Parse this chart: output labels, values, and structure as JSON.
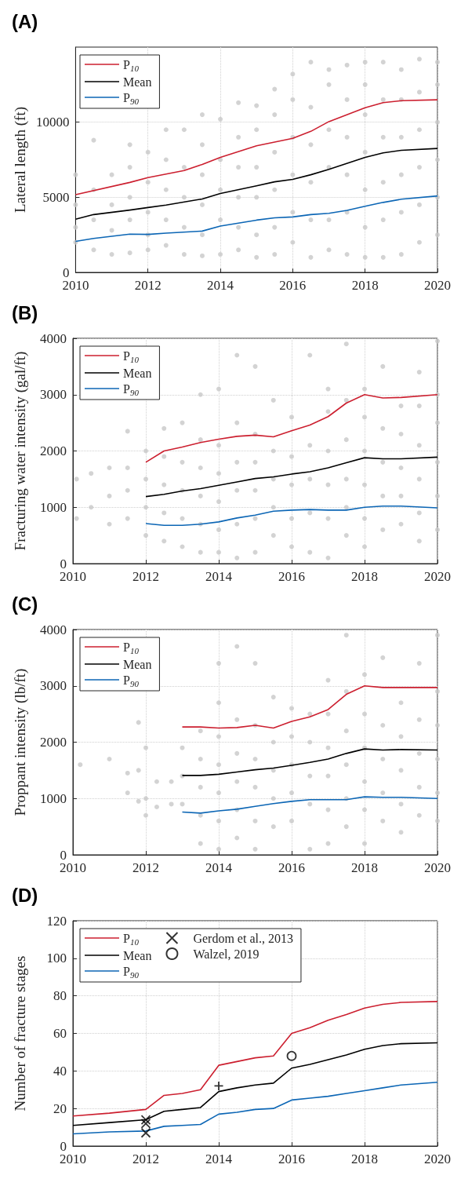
{
  "chart_data": [
    {
      "type": "line",
      "title": "(A)",
      "ylabel": "Lateral length (ft)",
      "xlim": [
        2010,
        2020
      ],
      "xticks": [
        2010,
        2012,
        2014,
        2016,
        2018,
        2020
      ],
      "ylim": [
        0,
        15000
      ],
      "yticks": [
        0,
        5000,
        10000
      ],
      "grid": true,
      "legend": "top left",
      "series": [
        {
          "type": "scatter",
          "marker": "circle",
          "color": "#c8c8c8",
          "x": [
            2010,
            2010,
            2010,
            2010,
            2010.5,
            2010.5,
            2010.5,
            2010.5,
            2011,
            2011,
            2011,
            2011,
            2011.5,
            2011.5,
            2011.5,
            2011.5,
            2011.5,
            2012,
            2012,
            2012,
            2012,
            2012,
            2012.5,
            2012.5,
            2012.5,
            2012.5,
            2012.5,
            2013,
            2013,
            2013,
            2013,
            2013,
            2013.5,
            2013.5,
            2013.5,
            2013.5,
            2013.5,
            2013.5,
            2014,
            2014,
            2014,
            2014,
            2014,
            2014.5,
            2014.5,
            2014.5,
            2014.5,
            2014.5,
            2014.5,
            2015,
            2015,
            2015,
            2015,
            2015,
            2015,
            2015.5,
            2015.5,
            2015.5,
            2015.5,
            2015.5,
            2015.5,
            2016,
            2016,
            2016,
            2016,
            2016,
            2016,
            2016.5,
            2016.5,
            2016.5,
            2016.5,
            2016.5,
            2016.5,
            2017,
            2017,
            2017,
            2017,
            2017,
            2017,
            2017.5,
            2017.5,
            2017.5,
            2017.5,
            2017.5,
            2017.5,
            2018,
            2018,
            2018,
            2018,
            2018,
            2018,
            2018,
            2018.5,
            2018.5,
            2018.5,
            2018.5,
            2018.5,
            2018.5,
            2019,
            2019,
            2019,
            2019,
            2019,
            2019,
            2019.5,
            2019.5,
            2019.5,
            2019.5,
            2019.5,
            2019.5,
            2020,
            2020,
            2020,
            2020,
            2020,
            2020
          ],
          "values": [
            2000,
            3000,
            4500,
            6500,
            1500,
            3500,
            5500,
            8800,
            1200,
            2800,
            4500,
            6500,
            1300,
            3500,
            5000,
            7000,
            8500,
            1500,
            2500,
            4000,
            6000,
            8000,
            1800,
            3500,
            5500,
            7500,
            9500,
            1200,
            3000,
            5000,
            7000,
            9500,
            1100,
            2500,
            4500,
            6500,
            8500,
            10500,
            1200,
            3500,
            5500,
            7500,
            10200,
            1500,
            3000,
            5000,
            7000,
            9000,
            11300,
            1000,
            2500,
            5000,
            7000,
            9500,
            11100,
            1200,
            3000,
            5500,
            8000,
            10500,
            12200,
            2000,
            4000,
            6500,
            9000,
            11500,
            13200,
            1000,
            3500,
            6000,
            8500,
            11000,
            14000,
            1500,
            3500,
            7000,
            9500,
            12500,
            13500,
            1200,
            4000,
            6500,
            9000,
            11500,
            13800,
            1000,
            3000,
            5500,
            8000,
            10500,
            12500,
            14000,
            1000,
            3500,
            6000,
            9000,
            11500,
            14000,
            1200,
            4000,
            6500,
            9000,
            11500,
            13500,
            2000,
            4500,
            7000,
            9500,
            12000,
            14200,
            2500,
            5000,
            7500,
            10000,
            12500,
            14000
          ]
        },
        {
          "name": "P$_{10}$",
          "color": "#cc1f2f",
          "x": [
            2010,
            2011.5,
            2012,
            2013,
            2013.5,
            2014,
            2015,
            2016,
            2016.5,
            2017,
            2018,
            2018.5,
            2019,
            2020
          ],
          "values": [
            5170,
            5990,
            6310,
            6780,
            7190,
            7660,
            8430,
            8920,
            9390,
            10040,
            10960,
            11300,
            11430,
            11490
          ]
        },
        {
          "name": "Mean",
          "color": "#000000",
          "x": [
            2010,
            2010.5,
            2011.5,
            2012,
            2012.5,
            2013.5,
            2014,
            2015,
            2015.5,
            2016,
            2016.5,
            2017,
            2018,
            2018.5,
            2019,
            2020
          ],
          "values": [
            3540,
            3850,
            4150,
            4320,
            4480,
            4890,
            5250,
            5760,
            6030,
            6190,
            6500,
            6860,
            7660,
            7960,
            8130,
            8250
          ]
        },
        {
          "name": "P$_{90}$",
          "color": "#0c66b5",
          "x": [
            2010,
            2010.5,
            2011.5,
            2012,
            2012.5,
            2013.5,
            2014,
            2015,
            2015.5,
            2016,
            2016.5,
            2017,
            2017.5,
            2018,
            2018.5,
            2019,
            2020
          ],
          "values": [
            2060,
            2260,
            2550,
            2530,
            2610,
            2750,
            3080,
            3480,
            3630,
            3690,
            3850,
            3930,
            4130,
            4400,
            4660,
            4870,
            5090
          ]
        }
      ]
    },
    {
      "type": "line",
      "title": "(B)",
      "ylabel": "Fracturing water intensity (gal/ft)",
      "xlim": [
        2010,
        2020
      ],
      "xticks": [
        2010,
        2012,
        2014,
        2016,
        2018,
        2020
      ],
      "ylim": [
        0,
        4000
      ],
      "yticks": [
        0,
        1000,
        2000,
        3000,
        4000
      ],
      "grid": true,
      "legend": "top left",
      "series": [
        {
          "type": "scatter",
          "marker": "circle",
          "color": "#c8c8c8",
          "x": [
            2010.1,
            2010.1,
            2010.5,
            2010.5,
            2011,
            2011,
            2011,
            2011.5,
            2011.5,
            2011.5,
            2011.5,
            2012,
            2012,
            2012,
            2012,
            2012.5,
            2012.5,
            2012.5,
            2012.5,
            2012.5,
            2013,
            2013,
            2013,
            2013,
            2013,
            2013.5,
            2013.5,
            2013.5,
            2013.5,
            2013.5,
            2013.5,
            2014,
            2014,
            2014,
            2014,
            2014,
            2014,
            2014.5,
            2014.5,
            2014.5,
            2014.5,
            2014.5,
            2014.5,
            2015,
            2015,
            2015,
            2015,
            2015,
            2015,
            2015.5,
            2015.5,
            2015.5,
            2015.5,
            2015.5,
            2016,
            2016,
            2016,
            2016,
            2016,
            2016.5,
            2016.5,
            2016.5,
            2016.5,
            2016.5,
            2017,
            2017,
            2017,
            2017,
            2017,
            2017,
            2017.5,
            2017.5,
            2017.5,
            2017.5,
            2017.5,
            2017.5,
            2018,
            2018,
            2018,
            2018,
            2018,
            2018,
            2018.5,
            2018.5,
            2018.5,
            2018.5,
            2018.5,
            2019,
            2019,
            2019,
            2019,
            2019,
            2019.5,
            2019.5,
            2019.5,
            2019.5,
            2019.5,
            2019.5,
            2020,
            2020,
            2020,
            2020,
            2020,
            2020
          ],
          "values": [
            800,
            1500,
            1000,
            1600,
            700,
            1200,
            1700,
            800,
            1300,
            1700,
            2350,
            500,
            1000,
            1500,
            2000,
            400,
            900,
            1400,
            1900,
            2400,
            300,
            800,
            1300,
            1800,
            2500,
            200,
            700,
            1200,
            1700,
            2200,
            3000,
            200,
            600,
            1100,
            1600,
            2100,
            3100,
            100,
            700,
            1300,
            1800,
            2500,
            3700,
            200,
            800,
            1300,
            1800,
            2300,
            3500,
            500,
            1000,
            1500,
            2000,
            2900,
            300,
            800,
            1400,
            1900,
            2600,
            200,
            900,
            1500,
            2100,
            3700,
            100,
            800,
            1400,
            2000,
            2700,
            3100,
            500,
            1000,
            1500,
            2200,
            2900,
            3900,
            300,
            800,
            1400,
            2000,
            2600,
            3100,
            600,
            1200,
            1800,
            2400,
            3500,
            700,
            1200,
            1700,
            2300,
            2800,
            400,
            900,
            1500,
            2100,
            2800,
            3400,
            600,
            1200,
            1800,
            2500,
            3000,
            3950
          ]
        },
        {
          "name": "P$_{10}$",
          "color": "#cc1f2f",
          "x": [
            2012,
            2012.5,
            2013,
            2013.5,
            2014,
            2014.5,
            2015,
            2015.5,
            2016,
            2016.5,
            2017,
            2017.5,
            2018,
            2018.5,
            2019,
            2020
          ],
          "values": [
            1800,
            2000,
            2070,
            2150,
            2210,
            2260,
            2280,
            2250,
            2360,
            2460,
            2610,
            2850,
            3000,
            2940,
            2950,
            3000
          ]
        },
        {
          "name": "Mean",
          "color": "#000000",
          "x": [
            2012,
            2012.5,
            2013,
            2013.5,
            2014,
            2014.5,
            2015,
            2015.5,
            2016,
            2016.5,
            2017,
            2017.5,
            2018,
            2018.5,
            2019,
            2020
          ],
          "values": [
            1190,
            1230,
            1290,
            1330,
            1390,
            1450,
            1510,
            1540,
            1590,
            1630,
            1700,
            1790,
            1880,
            1860,
            1860,
            1890
          ]
        },
        {
          "name": "P$_{90}$",
          "color": "#0c66b5",
          "x": [
            2012,
            2012.5,
            2013,
            2013.5,
            2014,
            2014.5,
            2015,
            2015.5,
            2016,
            2016.5,
            2017,
            2017.5,
            2018,
            2018.5,
            2019,
            2020
          ],
          "values": [
            710,
            680,
            680,
            700,
            740,
            810,
            860,
            930,
            950,
            960,
            950,
            950,
            1000,
            1020,
            1020,
            990
          ]
        }
      ]
    },
    {
      "type": "line",
      "title": "(C)",
      "ylabel": "Proppant intensity (lb/ft)",
      "xlim": [
        2010,
        2020
      ],
      "xticks": [
        2010,
        2012,
        2014,
        2016,
        2018,
        2020
      ],
      "ylim": [
        0,
        4000
      ],
      "yticks": [
        0,
        1000,
        2000,
        3000,
        4000
      ],
      "grid": true,
      "legend": "top left",
      "series": [
        {
          "type": "scatter",
          "marker": "circle",
          "color": "#c8c8c8",
          "x": [
            2010.2,
            2011,
            2011.5,
            2011.5,
            2011.8,
            2011.8,
            2011.8,
            2012,
            2012,
            2012,
            2012.3,
            2012.3,
            2012.7,
            2012.7,
            2013,
            2013,
            2013,
            2013.5,
            2013.5,
            2013.5,
            2013.5,
            2013.5,
            2014,
            2014,
            2014,
            2014,
            2014,
            2014,
            2014,
            2014.5,
            2014.5,
            2014.5,
            2014.5,
            2014.5,
            2014.5,
            2015,
            2015,
            2015,
            2015,
            2015,
            2015,
            2015.5,
            2015.5,
            2015.5,
            2015.5,
            2015.5,
            2016,
            2016,
            2016,
            2016,
            2016,
            2016.5,
            2016.5,
            2016.5,
            2016.5,
            2016.5,
            2017,
            2017,
            2017,
            2017,
            2017,
            2017,
            2017.5,
            2017.5,
            2017.5,
            2017.5,
            2017.5,
            2017.5,
            2018,
            2018,
            2018,
            2018,
            2018,
            2018,
            2018.5,
            2018.5,
            2018.5,
            2018.5,
            2018.5,
            2019,
            2019,
            2019,
            2019,
            2019,
            2019.5,
            2019.5,
            2019.5,
            2019.5,
            2019.5,
            2020,
            2020,
            2020,
            2020,
            2020,
            2020
          ],
          "values": [
            1600,
            1700,
            1100,
            1450,
            950,
            1500,
            2350,
            700,
            1000,
            1900,
            850,
            1300,
            900,
            1300,
            900,
            1400,
            1900,
            200,
            700,
            1200,
            1700,
            2200,
            100,
            600,
            1100,
            1600,
            2100,
            2700,
            3400,
            300,
            800,
            1300,
            1800,
            2400,
            3700,
            100,
            600,
            1200,
            1700,
            2300,
            3400,
            500,
            1000,
            1500,
            2000,
            2800,
            600,
            1100,
            1600,
            2100,
            2600,
            100,
            900,
            1400,
            2000,
            2500,
            200,
            800,
            1400,
            1900,
            2500,
            3100,
            500,
            1000,
            1600,
            2200,
            2900,
            3900,
            200,
            800,
            1300,
            1900,
            2500,
            3200,
            600,
            1100,
            1700,
            2300,
            3500,
            400,
            900,
            1500,
            2100,
            2700,
            700,
            1200,
            1800,
            2400,
            3400,
            600,
            1100,
            1700,
            2300,
            2900,
            3900
          ]
        },
        {
          "name": "P$_{10}$",
          "color": "#cc1f2f",
          "x": [
            2013,
            2013.5,
            2014,
            2014.5,
            2015,
            2015.5,
            2016,
            2016.5,
            2017,
            2017.5,
            2018,
            2018.5,
            2019,
            2020
          ],
          "values": [
            2270,
            2270,
            2250,
            2260,
            2300,
            2250,
            2370,
            2450,
            2580,
            2850,
            3000,
            2970,
            2970,
            2970
          ]
        },
        {
          "name": "Mean",
          "color": "#000000",
          "x": [
            2013,
            2013.5,
            2014,
            2014.5,
            2015,
            2015.5,
            2016,
            2016.5,
            2017,
            2017.5,
            2018,
            2018.5,
            2019,
            2020
          ],
          "values": [
            1410,
            1410,
            1430,
            1470,
            1510,
            1540,
            1590,
            1640,
            1700,
            1800,
            1880,
            1860,
            1870,
            1860
          ]
        },
        {
          "name": "P$_{90}$",
          "color": "#0c66b5",
          "x": [
            2013,
            2013.5,
            2014,
            2014.5,
            2015,
            2015.5,
            2016,
            2016.5,
            2017,
            2017.5,
            2018,
            2018.5,
            2019,
            2020
          ],
          "values": [
            760,
            740,
            780,
            810,
            860,
            910,
            950,
            980,
            980,
            980,
            1030,
            1020,
            1020,
            1000
          ]
        }
      ]
    },
    {
      "type": "line",
      "title": "(D)",
      "ylabel": "Number of fracture stages",
      "xlim": [
        2010,
        2020
      ],
      "xticks": [
        2010,
        2012,
        2014,
        2016,
        2018,
        2020
      ],
      "ylim": [
        0,
        120
      ],
      "yticks": [
        0,
        20,
        40,
        60,
        80,
        100,
        120
      ],
      "grid": true,
      "legend": "top left",
      "series": [
        {
          "name": "P$_{10}$",
          "color": "#cc1f2f",
          "x": [
            2010,
            2011,
            2012,
            2012.5,
            2013,
            2013.5,
            2014,
            2014.5,
            2015,
            2015.5,
            2016,
            2016.5,
            2017,
            2017.5,
            2018,
            2018.5,
            2019,
            2020
          ],
          "values": [
            16,
            17.5,
            19.5,
            27,
            28,
            30,
            43,
            45,
            47,
            48,
            60,
            63,
            67,
            70,
            73.5,
            75.5,
            76.5,
            77
          ]
        },
        {
          "name": "Mean",
          "color": "#000000",
          "x": [
            2010,
            2011,
            2012,
            2012.5,
            2013,
            2013.5,
            2014,
            2014.5,
            2015,
            2015.5,
            2016,
            2016.5,
            2017,
            2017.5,
            2018,
            2018.5,
            2019,
            2020
          ],
          "values": [
            11,
            12.5,
            14,
            18.5,
            19.5,
            20.5,
            29,
            31,
            32.5,
            33.5,
            41.5,
            43.5,
            46,
            48.5,
            51.5,
            53.5,
            54.5,
            55
          ]
        },
        {
          "name": "P$_{90}$",
          "color": "#0c66b5",
          "x": [
            2010,
            2011,
            2012,
            2012.5,
            2013,
            2013.5,
            2014,
            2014.5,
            2015,
            2015.5,
            2016,
            2016.5,
            2017,
            2017.5,
            2018,
            2018.5,
            2019,
            2020
          ],
          "values": [
            6.5,
            7.5,
            8,
            10.5,
            11,
            11.5,
            17,
            18,
            19.5,
            20,
            24.5,
            25.5,
            26.5,
            28,
            29.5,
            31,
            32.5,
            34
          ]
        },
        {
          "type": "scatter",
          "name": "Gerdom et al., 2013",
          "marker": "cross",
          "color": "#000000",
          "x": [
            2012,
            2012,
            2012
          ],
          "values": [
            14,
            12,
            7
          ]
        },
        {
          "type": "scatter",
          "marker": "plus",
          "color": "#000000",
          "x": [
            2014
          ],
          "values": [
            32
          ]
        },
        {
          "type": "scatter",
          "name": "Walzel, 2019",
          "marker": "circle",
          "color": "#000000",
          "x": [
            2016
          ],
          "values": [
            48
          ]
        }
      ]
    }
  ]
}
